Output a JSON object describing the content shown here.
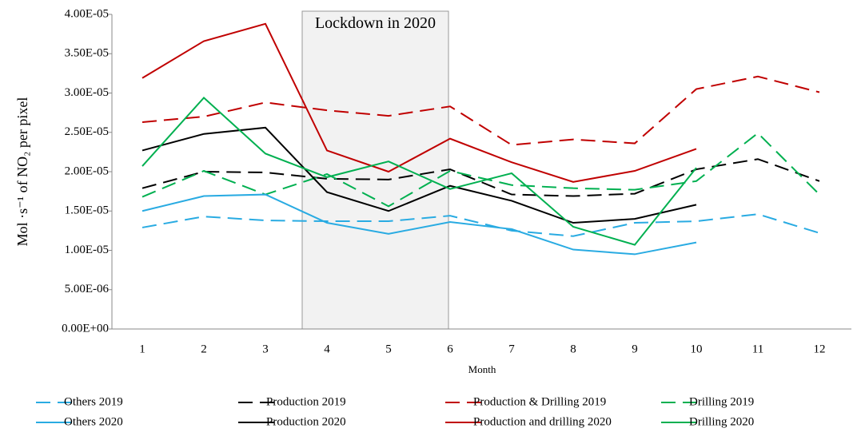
{
  "chart_data": {
    "type": "line",
    "annotation": "Lockdown in 2020",
    "y_label": "Mol ·s⁻¹ of NO₂ per pixel",
    "x_label": "Month",
    "categories": [
      "1",
      "2",
      "3",
      "4",
      "5",
      "6",
      "7",
      "8",
      "9",
      "10",
      "11",
      "12"
    ],
    "ylim": [
      0,
      4e-05
    ],
    "yticks": [
      {
        "value": 0,
        "label": "0.00E+00"
      },
      {
        "value": 5e-06,
        "label": "5.00E-06"
      },
      {
        "value": 1e-05,
        "label": "1.00E-05"
      },
      {
        "value": 1.5e-05,
        "label": "1.50E-05"
      },
      {
        "value": 2e-05,
        "label": "2.00E-05"
      },
      {
        "value": 2.5e-05,
        "label": "2.50E-05"
      },
      {
        "value": 3e-05,
        "label": "3.00E-05"
      },
      {
        "value": 3.5e-05,
        "label": "3.50E-05"
      },
      {
        "value": 4e-05,
        "label": "4.00E-05"
      }
    ],
    "grid": false,
    "legend": "bottom",
    "series": [
      {
        "name": "Others 2019",
        "color": "#29abe2",
        "style": "dashed",
        "values": [
          1.29e-05,
          1.43e-05,
          1.38e-05,
          1.37e-05,
          1.37e-05,
          1.44e-05,
          1.25e-05,
          1.18e-05,
          1.35e-05,
          1.37e-05,
          1.46e-05,
          1.22e-05
        ]
      },
      {
        "name": "Production 2019",
        "color": "#000000",
        "style": "dashed",
        "values": [
          1.79e-05,
          2e-05,
          1.99e-05,
          1.91e-05,
          1.9e-05,
          2.03e-05,
          1.71e-05,
          1.69e-05,
          1.72e-05,
          2.03e-05,
          2.16e-05,
          1.88e-05
        ]
      },
      {
        "name": "Production & Drilling 2019",
        "color": "#c00000",
        "style": "dashed",
        "values": [
          2.63e-05,
          2.7e-05,
          2.88e-05,
          2.78e-05,
          2.71e-05,
          2.83e-05,
          2.34e-05,
          2.41e-05,
          2.36e-05,
          3.05e-05,
          3.21e-05,
          3.01e-05
        ]
      },
      {
        "name": "Drilling 2019",
        "color": "#00b050",
        "style": "dashed",
        "values": [
          1.68e-05,
          2.01e-05,
          1.71e-05,
          1.97e-05,
          1.56e-05,
          2.01e-05,
          1.83e-05,
          1.79e-05,
          1.77e-05,
          1.88e-05,
          2.49e-05,
          1.71e-05
        ]
      },
      {
        "name": "Others 2020",
        "color": "#29abe2",
        "style": "solid",
        "values": [
          1.5e-05,
          1.69e-05,
          1.71e-05,
          1.35e-05,
          1.21e-05,
          1.36e-05,
          1.27e-05,
          1.01e-05,
          9.5e-06,
          1.1e-05,
          null,
          null
        ]
      },
      {
        "name": "Production 2020",
        "color": "#000000",
        "style": "solid",
        "values": [
          2.27e-05,
          2.48e-05,
          2.56e-05,
          1.74e-05,
          1.5e-05,
          1.82e-05,
          1.63e-05,
          1.35e-05,
          1.4e-05,
          1.58e-05,
          null,
          null
        ]
      },
      {
        "name": "Production and drilling 2020",
        "color": "#c00000",
        "style": "solid",
        "values": [
          3.19e-05,
          3.66e-05,
          3.88e-05,
          2.27e-05,
          2e-05,
          2.42e-05,
          2.12e-05,
          1.87e-05,
          2.01e-05,
          2.29e-05,
          null,
          null
        ]
      },
      {
        "name": "Drilling 2020",
        "color": "#00b050",
        "style": "solid",
        "values": [
          2.07e-05,
          2.94e-05,
          2.23e-05,
          1.93e-05,
          2.13e-05,
          1.78e-05,
          1.98e-05,
          1.3e-05,
          1.07e-05,
          2.05e-05,
          null,
          null
        ]
      }
    ]
  }
}
